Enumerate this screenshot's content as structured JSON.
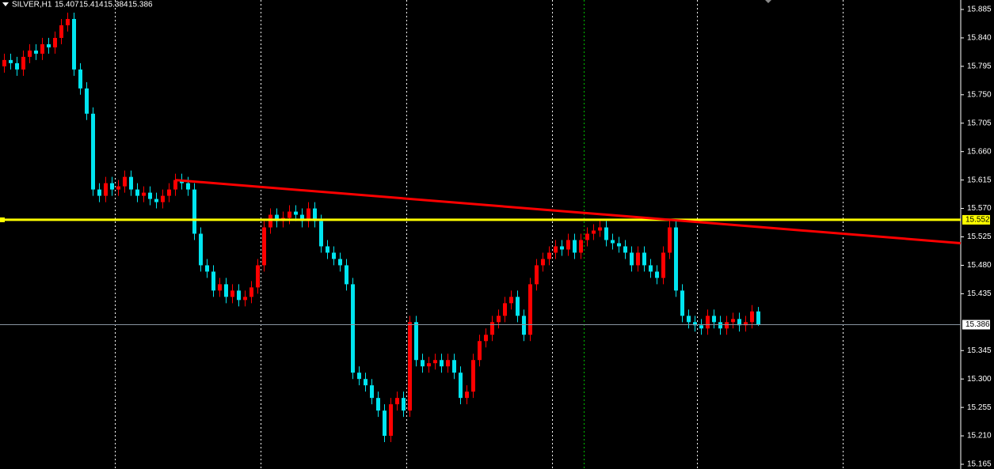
{
  "chart_data": {
    "type": "candlestick",
    "symbol": "SILVER,H1",
    "open": [
      15.795,
      15.805,
      15.8,
      15.79,
      15.81,
      15.82,
      15.815,
      15.83,
      15.825,
      15.84,
      15.86,
      15.87,
      15.79,
      15.76,
      15.72,
      15.6,
      15.59,
      15.61,
      15.6,
      15.605,
      15.62,
      15.6,
      15.59,
      15.595,
      15.585,
      15.58,
      15.59,
      15.6,
      15.615,
      15.61,
      15.6,
      15.53,
      15.48,
      15.47,
      15.44,
      15.45,
      15.43,
      15.44,
      15.425,
      15.43,
      15.445,
      15.48,
      15.54,
      15.56,
      15.55,
      15.555,
      15.565,
      15.56,
      15.55,
      15.57,
      15.55,
      15.51,
      15.5,
      15.49,
      15.48,
      15.45,
      15.31,
      15.3,
      15.29,
      15.27,
      15.25,
      15.21,
      15.26,
      15.27,
      15.25,
      15.39,
      15.33,
      15.32,
      15.325,
      15.33,
      15.32,
      15.33,
      15.31,
      15.27,
      15.28,
      15.33,
      15.36,
      15.37,
      15.39,
      15.4,
      15.42,
      15.43,
      15.4,
      15.37,
      15.45,
      15.48,
      15.49,
      15.5,
      15.51,
      15.505,
      15.52,
      15.5,
      15.52,
      15.53,
      15.535,
      15.54,
      15.52,
      15.515,
      15.51,
      15.5,
      15.48,
      15.5,
      15.48,
      15.47,
      15.46,
      15.5,
      15.54,
      15.44,
      15.4,
      15.39,
      15.385,
      15.38,
      15.4,
      15.39,
      15.38,
      15.39,
      15.395,
      15.385,
      15.39,
      15.407
    ],
    "high": [
      15.815,
      15.815,
      15.81,
      15.82,
      15.83,
      15.83,
      15.84,
      15.84,
      15.85,
      15.87,
      15.88,
      15.88,
      15.8,
      15.77,
      15.73,
      15.61,
      15.62,
      15.62,
      15.615,
      15.63,
      15.63,
      15.61,
      15.605,
      15.605,
      15.595,
      15.6,
      15.61,
      15.625,
      15.625,
      15.62,
      15.61,
      15.54,
      15.49,
      15.48,
      15.46,
      15.46,
      15.45,
      15.45,
      15.44,
      15.455,
      15.49,
      15.55,
      15.57,
      15.57,
      15.565,
      15.575,
      15.575,
      15.57,
      15.58,
      15.58,
      15.56,
      15.52,
      15.51,
      15.5,
      15.49,
      15.46,
      15.32,
      15.31,
      15.3,
      15.28,
      15.26,
      15.27,
      15.28,
      15.28,
      15.4,
      15.4,
      15.34,
      15.335,
      15.34,
      15.34,
      15.34,
      15.34,
      15.32,
      15.29,
      15.34,
      15.37,
      15.38,
      15.4,
      15.41,
      15.43,
      15.44,
      15.44,
      15.41,
      15.46,
      15.49,
      15.5,
      15.51,
      15.52,
      15.52,
      15.53,
      15.53,
      15.53,
      15.54,
      15.545,
      15.55,
      15.55,
      15.53,
      15.525,
      15.52,
      15.51,
      15.51,
      15.51,
      15.49,
      15.48,
      15.51,
      15.55,
      15.55,
      15.45,
      15.41,
      15.4,
      15.395,
      15.41,
      15.41,
      15.4,
      15.4,
      15.405,
      15.405,
      15.4,
      15.417,
      15.414
    ],
    "low": [
      15.785,
      15.79,
      15.78,
      15.78,
      15.8,
      15.805,
      15.805,
      15.815,
      15.815,
      15.83,
      15.85,
      15.78,
      15.75,
      15.71,
      15.59,
      15.58,
      15.58,
      15.59,
      15.59,
      15.595,
      15.59,
      15.58,
      15.58,
      15.575,
      15.57,
      15.57,
      15.58,
      15.59,
      15.6,
      15.59,
      15.52,
      15.47,
      15.46,
      15.43,
      15.43,
      15.42,
      15.42,
      15.415,
      15.415,
      15.42,
      15.435,
      15.47,
      15.53,
      15.54,
      15.54,
      15.545,
      15.55,
      15.54,
      15.54,
      15.54,
      15.5,
      15.49,
      15.48,
      15.47,
      15.44,
      15.3,
      15.29,
      15.28,
      15.26,
      15.24,
      15.2,
      15.2,
      15.25,
      15.24,
      15.24,
      15.32,
      15.31,
      15.31,
      15.315,
      15.31,
      15.31,
      15.3,
      15.26,
      15.26,
      15.27,
      15.32,
      15.35,
      15.36,
      15.38,
      15.39,
      15.41,
      15.39,
      15.36,
      15.36,
      15.44,
      15.47,
      15.48,
      15.49,
      15.495,
      15.495,
      15.49,
      15.49,
      15.51,
      15.52,
      15.525,
      15.51,
      15.505,
      15.5,
      15.49,
      15.47,
      15.47,
      15.47,
      15.46,
      15.45,
      15.45,
      15.49,
      15.43,
      15.39,
      15.38,
      15.375,
      15.37,
      15.37,
      15.38,
      15.37,
      15.37,
      15.38,
      15.375,
      15.375,
      15.38,
      15.384
    ],
    "close": [
      15.805,
      15.8,
      15.79,
      15.81,
      15.82,
      15.815,
      15.83,
      15.825,
      15.84,
      15.86,
      15.87,
      15.79,
      15.76,
      15.72,
      15.6,
      15.59,
      15.61,
      15.6,
      15.605,
      15.62,
      15.6,
      15.59,
      15.595,
      15.585,
      15.58,
      15.59,
      15.6,
      15.615,
      15.61,
      15.6,
      15.53,
      15.48,
      15.47,
      15.44,
      15.45,
      15.43,
      15.44,
      15.425,
      15.43,
      15.445,
      15.48,
      15.54,
      15.56,
      15.55,
      15.555,
      15.565,
      15.56,
      15.55,
      15.57,
      15.55,
      15.51,
      15.5,
      15.49,
      15.48,
      15.45,
      15.31,
      15.3,
      15.29,
      15.27,
      15.25,
      15.21,
      15.26,
      15.27,
      15.25,
      15.39,
      15.33,
      15.32,
      15.325,
      15.33,
      15.32,
      15.33,
      15.31,
      15.27,
      15.28,
      15.33,
      15.36,
      15.37,
      15.39,
      15.4,
      15.42,
      15.43,
      15.4,
      15.37,
      15.45,
      15.48,
      15.49,
      15.5,
      15.51,
      15.505,
      15.52,
      15.5,
      15.52,
      15.53,
      15.535,
      15.54,
      15.52,
      15.515,
      15.51,
      15.5,
      15.48,
      15.5,
      15.48,
      15.47,
      15.46,
      15.5,
      15.54,
      15.44,
      15.4,
      15.39,
      15.385,
      15.38,
      15.4,
      15.39,
      15.38,
      15.39,
      15.395,
      15.385,
      15.39,
      15.407,
      15.386
    ],
    "up_color": "#ff0000",
    "down_color": "#00e5f0",
    "ylim": [
      15.1575,
      15.9
    ],
    "yticks": [
      15.885,
      {
        "value": 15.84,
        "label": "15.840"
      },
      15.795,
      {
        "value": 15.75,
        "label": "15.750"
      },
      15.705,
      {
        "value": 15.66,
        "label": "15.660"
      },
      15.615,
      {
        "value": 15.57,
        "label": "15.570"
      },
      15.525,
      {
        "value": 15.48,
        "label": "15.480"
      },
      15.435,
      {
        "value": 15.345,
        "label": "15.345"
      },
      {
        "value": 15.3,
        "label": "15.300"
      },
      15.255,
      {
        "value": 15.21,
        "label": "15.210"
      },
      15.165
    ],
    "hline": {
      "value": 15.552,
      "color": "#ffff00"
    },
    "trendline": {
      "from_index": 27,
      "from_value": 15.615,
      "to_index": 151,
      "to_value": 15.515,
      "color": "#ff0000"
    }
  }
}
